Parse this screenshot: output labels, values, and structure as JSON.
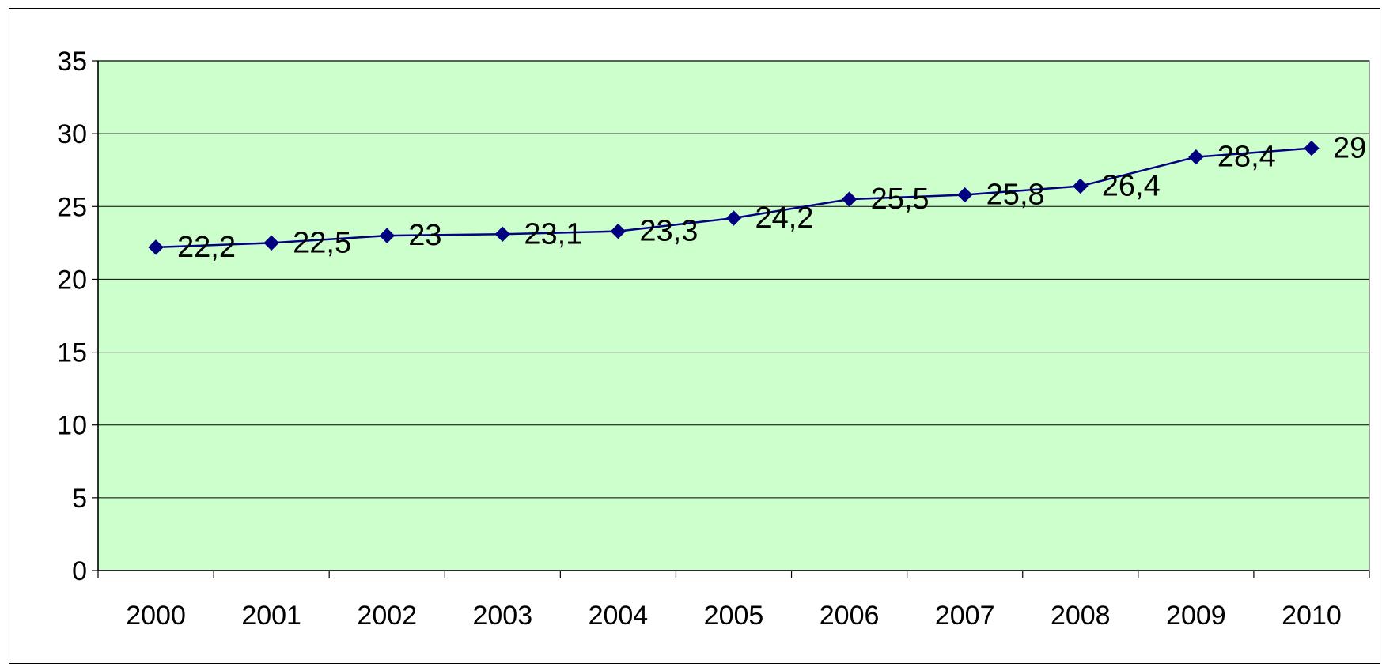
{
  "chart_data": {
    "type": "line",
    "categories": [
      "2000",
      "2001",
      "2002",
      "2003",
      "2004",
      "2005",
      "2006",
      "2007",
      "2008",
      "2009",
      "2010"
    ],
    "series": [
      {
        "values": [
          22.2,
          22.5,
          23,
          23.1,
          23.3,
          24.2,
          25.5,
          25.8,
          26.4,
          28.4,
          29
        ],
        "labels": [
          "22,2",
          "22,5",
          "23",
          "23,1",
          "23,3",
          "24,2",
          "25,5",
          "25,8",
          "26,4",
          "28,4",
          "29"
        ]
      }
    ],
    "ylim": [
      0,
      35
    ],
    "yticks": [
      0,
      5,
      10,
      15,
      20,
      25,
      30,
      35
    ],
    "grid": true,
    "legend": "none",
    "colors": {
      "plot_background": "#CCFFCC",
      "line": "#000080",
      "marker": "#000080",
      "gridline": "#000000"
    }
  }
}
